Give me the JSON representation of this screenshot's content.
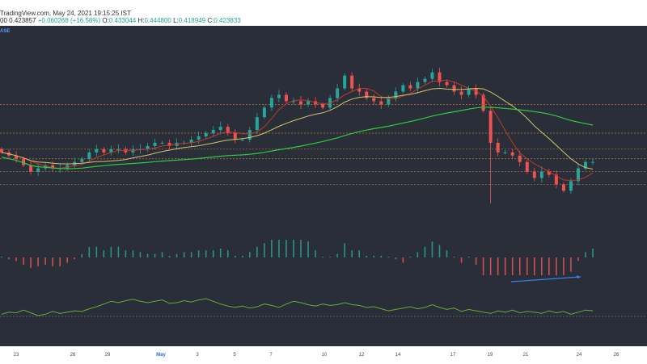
{
  "header": {
    "source_line": "TradingView.com, May 24, 2021 19:15:25 IST",
    "price_prefix": "00",
    "last_price": "0.423857",
    "change": "+0.060268 (+16.58%)",
    "open_key": "O:",
    "open_val": "0.433044",
    "high_key": "H:",
    "high_val": "0.444800",
    "low_key": "L:",
    "low_val": "0.418949",
    "close_key": "C:",
    "close_val": "0.423833"
  },
  "exchange_tag": "ASE",
  "colors": {
    "background": "#2a2e39",
    "up": "#26a69a",
    "down": "#ef5350",
    "ema_short": "#c0392b",
    "ma_mid": "#d4c46a",
    "ma_long": "#2ecc40",
    "level": "#b87a3a",
    "oscillator": "#6aa83b",
    "divergence": "#3b82f6"
  },
  "chart_data": {
    "type": "candlestick",
    "x_ticks": [
      {
        "label": "23",
        "month": false
      },
      {
        "label": "26",
        "month": false
      },
      {
        "label": "29",
        "month": false
      },
      {
        "label": "May",
        "month": true
      },
      {
        "label": "3",
        "month": false
      },
      {
        "label": "5",
        "month": false
      },
      {
        "label": "7",
        "month": false
      },
      {
        "label": "10",
        "month": false
      },
      {
        "label": "12",
        "month": false
      },
      {
        "label": "14",
        "month": false
      },
      {
        "label": "17",
        "month": false
      },
      {
        "label": "19",
        "month": false
      },
      {
        "label": "21",
        "month": false
      },
      {
        "label": "24",
        "month": false
      },
      {
        "label": "26",
        "month": false
      }
    ],
    "horizontal_levels": [
      0.61,
      0.52,
      0.47,
      0.44,
      0.4,
      0.36
    ],
    "price_range": [
      0.25,
      0.78
    ],
    "candle_close_path": [
      0.46,
      0.45,
      0.44,
      0.42,
      0.4,
      0.41,
      0.42,
      0.41,
      0.41,
      0.42,
      0.43,
      0.44,
      0.46,
      0.47,
      0.46,
      0.47,
      0.47,
      0.46,
      0.47,
      0.47,
      0.48,
      0.49,
      0.49,
      0.48,
      0.49,
      0.49,
      0.5,
      0.51,
      0.52,
      0.53,
      0.54,
      0.52,
      0.5,
      0.5,
      0.53,
      0.57,
      0.6,
      0.63,
      0.64,
      0.62,
      0.62,
      0.61,
      0.62,
      0.61,
      0.6,
      0.63,
      0.66,
      0.7,
      0.66,
      0.65,
      0.63,
      0.62,
      0.61,
      0.63,
      0.65,
      0.67,
      0.66,
      0.68,
      0.69,
      0.71,
      0.68,
      0.67,
      0.65,
      0.64,
      0.66,
      0.64,
      0.59,
      0.49,
      0.46,
      0.46,
      0.45,
      0.43,
      0.4,
      0.38,
      0.4,
      0.39,
      0.36,
      0.34,
      0.37,
      0.41,
      0.43,
      0.43
    ],
    "oscillator_path": [
      0.33,
      0.36,
      0.35,
      0.39,
      0.35,
      0.31,
      0.33,
      0.37,
      0.34,
      0.36,
      0.38,
      0.37,
      0.41,
      0.44,
      0.48,
      0.52,
      0.5,
      0.53,
      0.55,
      0.52,
      0.5,
      0.52,
      0.54,
      0.49,
      0.5,
      0.53,
      0.51,
      0.54,
      0.56,
      0.52,
      0.48,
      0.45,
      0.43,
      0.45,
      0.42,
      0.44,
      0.48,
      0.46,
      0.43,
      0.48,
      0.52,
      0.5,
      0.47,
      0.45,
      0.48,
      0.46,
      0.47,
      0.5,
      0.47,
      0.46,
      0.43,
      0.44,
      0.41,
      0.38,
      0.4,
      0.42,
      0.44,
      0.41,
      0.43,
      0.47,
      0.43,
      0.4,
      0.42,
      0.37,
      0.4,
      0.38,
      0.36,
      0.34,
      0.38,
      0.36,
      0.39,
      0.35,
      0.37,
      0.36,
      0.34,
      0.38,
      0.35,
      0.37,
      0.33,
      0.36,
      0.39,
      0.38
    ]
  }
}
